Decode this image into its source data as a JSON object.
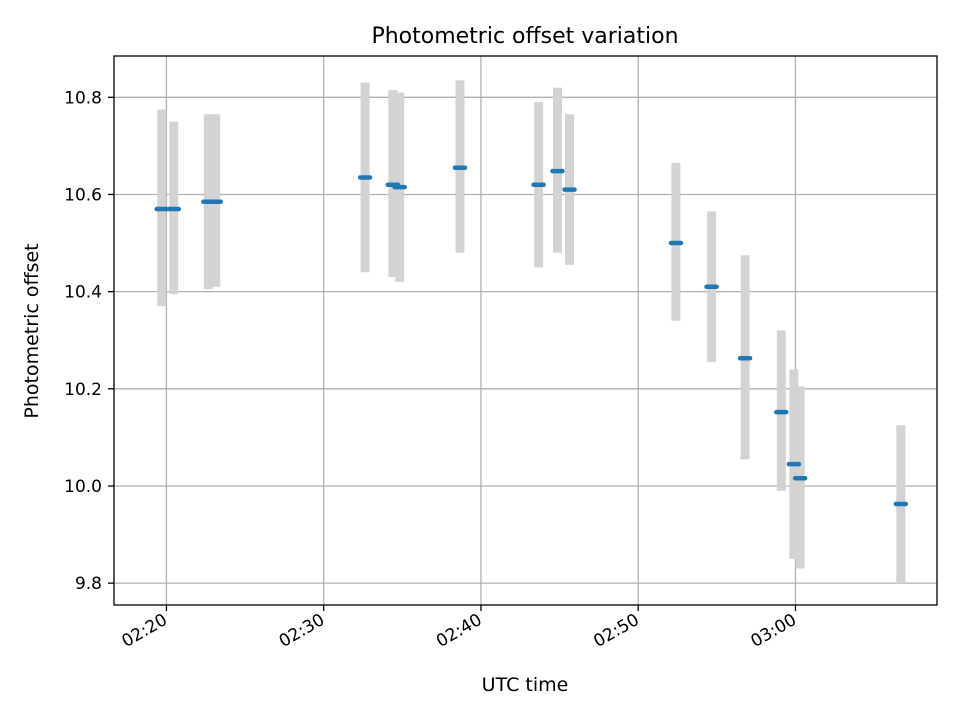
{
  "chart_data": {
    "type": "scatter",
    "title": "Photometric offset variation",
    "xlabel": "UTC time",
    "ylabel": "Photometric offset",
    "x_ticks": [
      "02:20",
      "02:30",
      "02:40",
      "02:50",
      "03:00"
    ],
    "y_ticks": [
      "9.8",
      "10.0",
      "10.2",
      "10.4",
      "10.6",
      "10.8"
    ],
    "xlim": [
      "02:16:40",
      "03:09:00"
    ],
    "ylim": [
      9.755,
      10.885
    ],
    "grid": true,
    "marker_color": "#1f77b4",
    "errorbar_color": "#d3d3d3",
    "points": [
      {
        "time": "02:19:42",
        "y": 10.57,
        "err_low": 10.37,
        "err_high": 10.775
      },
      {
        "time": "02:20:28",
        "y": 10.57,
        "err_low": 10.395,
        "err_high": 10.75
      },
      {
        "time": "02:22:40",
        "y": 10.585,
        "err_low": 10.405,
        "err_high": 10.765
      },
      {
        "time": "02:23:08",
        "y": 10.585,
        "err_low": 10.41,
        "err_high": 10.765
      },
      {
        "time": "02:32:38",
        "y": 10.635,
        "err_low": 10.44,
        "err_high": 10.83
      },
      {
        "time": "02:34:24",
        "y": 10.62,
        "err_low": 10.43,
        "err_high": 10.815
      },
      {
        "time": "02:34:50",
        "y": 10.615,
        "err_low": 10.42,
        "err_high": 10.81
      },
      {
        "time": "02:38:40",
        "y": 10.655,
        "err_low": 10.48,
        "err_high": 10.835
      },
      {
        "time": "02:43:40",
        "y": 10.62,
        "err_low": 10.45,
        "err_high": 10.79
      },
      {
        "time": "02:44:52",
        "y": 10.648,
        "err_low": 10.48,
        "err_high": 10.82
      },
      {
        "time": "02:45:38",
        "y": 10.61,
        "err_low": 10.455,
        "err_high": 10.765
      },
      {
        "time": "02:52:24",
        "y": 10.5,
        "err_low": 10.34,
        "err_high": 10.665
      },
      {
        "time": "02:54:40",
        "y": 10.41,
        "err_low": 10.255,
        "err_high": 10.565
      },
      {
        "time": "02:56:48",
        "y": 10.263,
        "err_low": 10.055,
        "err_high": 10.475
      },
      {
        "time": "02:59:06",
        "y": 10.152,
        "err_low": 9.99,
        "err_high": 10.32
      },
      {
        "time": "02:59:54",
        "y": 10.045,
        "err_low": 9.85,
        "err_high": 10.24
      },
      {
        "time": "03:00:18",
        "y": 10.016,
        "err_low": 9.83,
        "err_high": 10.205
      },
      {
        "time": "03:06:42",
        "y": 9.963,
        "err_low": 9.8,
        "err_high": 10.125
      }
    ]
  }
}
